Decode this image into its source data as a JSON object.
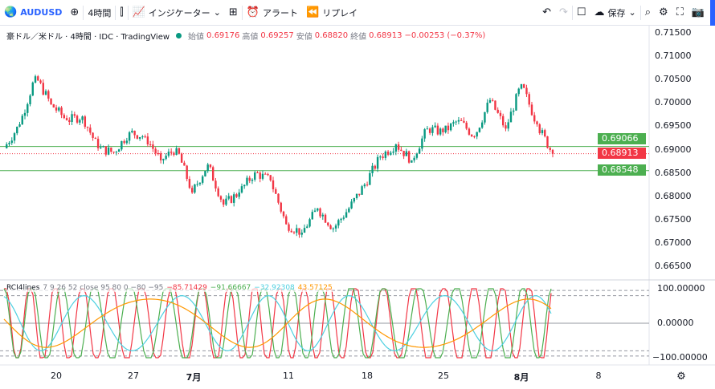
{
  "toolbar": {
    "symbol": "AUDUSD",
    "interval": "4時間",
    "indicators": "インジケーター",
    "alert": "アラート",
    "replay": "リプレイ",
    "save": "保存"
  },
  "legend": {
    "name": "豪ドル／米ドル · 4時間 · IDC · TradingView",
    "open_label": "始値",
    "open": "0.69176",
    "high_label": "高値",
    "high": "0.69257",
    "low_label": "安値",
    "low": "0.68820",
    "close_label": "終値",
    "close": "0.68913",
    "change": "−0.00253 (−0.37%)"
  },
  "rci": {
    "name": "RCI4lines",
    "params": "7 9 26 52 close 95 80 0 −80 −95",
    "v1": "−85.71429",
    "v2": "−91.66667",
    "v3": "−32.92308",
    "v4": "43.57125",
    "colors": [
      "#f23645",
      "#4caf50",
      "#4dd0e1",
      "#ff9800"
    ]
  },
  "price_axis": [
    "0.71500",
    "0.71000",
    "0.70500",
    "0.70000",
    "0.69500",
    "0.69000",
    "0.68500",
    "0.68000",
    "0.67500",
    "0.67000",
    "0.66500"
  ],
  "rci_axis": [
    "100.00000",
    "0.00000",
    "−100.00000"
  ],
  "price_tags": {
    "line1": "0.69066",
    "current": "0.68913",
    "line2": "0.68548"
  },
  "x_axis": [
    "20",
    "27",
    "7月",
    "11",
    "18",
    "25",
    "8月",
    "8"
  ],
  "colors": {
    "up": "#089981",
    "down": "#f23645",
    "hline": "#4caf50"
  },
  "chart_data": {
    "type": "candlestick",
    "ylim": [
      0.6625,
      0.7175
    ],
    "closes": [
      0.6903,
      0.6954,
      0.7057,
      0.6997,
      0.6963,
      0.6971,
      0.6903,
      0.6894,
      0.6937,
      0.6928,
      0.6877,
      0.6903,
      0.6808,
      0.6868,
      0.6782,
      0.6808,
      0.6851,
      0.6834,
      0.674,
      0.6722,
      0.6774,
      0.6731,
      0.6774,
      0.6825,
      0.6885,
      0.6911,
      0.6877,
      0.6945,
      0.6937,
      0.6963,
      0.6928,
      0.7006,
      0.6945,
      0.704,
      0.6954,
      0.6891
    ],
    "hlines": [
      0.69066,
      0.68548
    ],
    "current": 0.68913
  }
}
